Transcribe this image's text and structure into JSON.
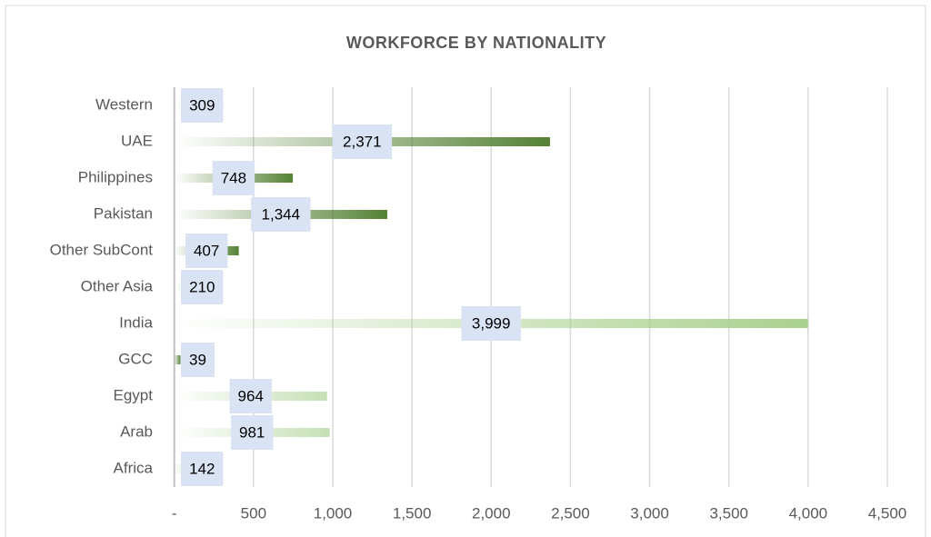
{
  "chart_data": {
    "type": "barh",
    "title": "WORKFORCE BY NATIONALITY",
    "categories": [
      "Western",
      "UAE",
      "Philippines",
      "Pakistan",
      "Other SubCont",
      "Other Asia",
      "India",
      "GCC",
      "Egypt",
      "Arab",
      "Africa"
    ],
    "values": [
      309,
      2371,
      748,
      1344,
      407,
      210,
      3999,
      39,
      964,
      981,
      142
    ],
    "value_labels": [
      "309",
      "2,371",
      "748",
      "1,344",
      "407",
      "210",
      "3,999",
      "39",
      "964",
      "981",
      "142"
    ],
    "colors": [
      "#c5e0b4",
      "#548235",
      "#548235",
      "#548235",
      "#548235",
      "#c5e0b4",
      "#a9d18e",
      "#548235",
      "#c5e0b4",
      "#c5e0b4",
      "#c5e0b4"
    ],
    "xlim": [
      0,
      4500
    ],
    "xticks": [
      {
        "value": 0,
        "label": "-"
      },
      500,
      {
        "value": 1000,
        "label": "1,000"
      },
      {
        "value": 1500,
        "label": "1,500"
      },
      {
        "value": 2000,
        "label": "2,000"
      },
      {
        "value": 2500,
        "label": "2,500"
      },
      {
        "value": 3000,
        "label": "3,000"
      },
      {
        "value": 3500,
        "label": "3,500"
      },
      {
        "value": 4000,
        "label": "4,000"
      },
      {
        "value": 4500,
        "label": "4,500"
      }
    ],
    "grid": true
  }
}
